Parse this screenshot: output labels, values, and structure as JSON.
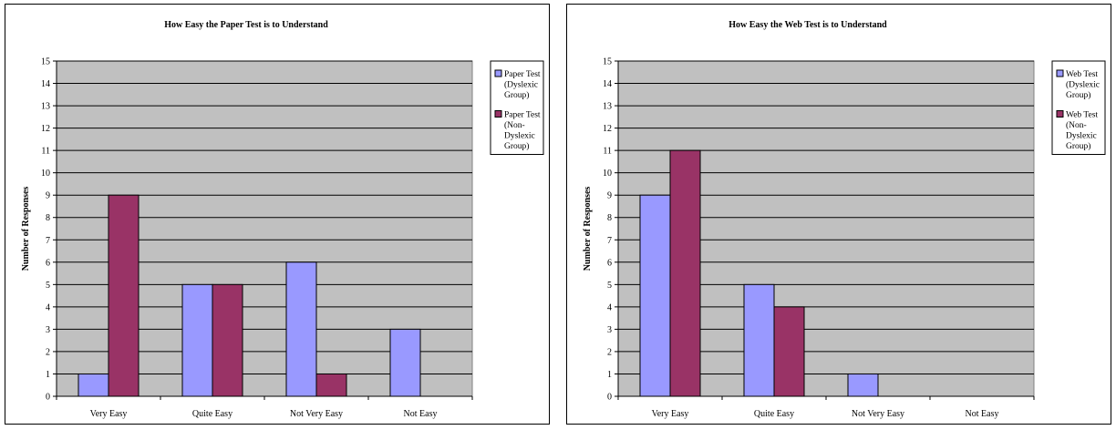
{
  "chart_data": [
    {
      "type": "bar",
      "title": "How Easy the Paper Test is to Understand",
      "xlabel": "",
      "ylabel": "Number of Responses",
      "categories": [
        "Very Easy",
        "Quite Easy",
        "Not Very Easy",
        "Not Easy"
      ],
      "series": [
        {
          "name": "Paper Test (Dyslexic Group)",
          "values": [
            1,
            5,
            6,
            3
          ],
          "color": "#9999ff"
        },
        {
          "name": "Paper Test (Non-Dyslexic Group)",
          "values": [
            9,
            5,
            1,
            0
          ],
          "color": "#993366"
        }
      ],
      "yticks": [
        "0",
        "1",
        "2",
        "3",
        "4",
        "5",
        "6",
        "7",
        "8",
        "9",
        "10",
        "11",
        "12",
        "13",
        "14",
        "15"
      ],
      "ylim": [
        0,
        15
      ],
      "grid": true,
      "plot_background": "#c0c0c0",
      "legend_position": "right",
      "legend": [
        {
          "lines": [
            "Paper Test",
            "(Dyslexic",
            "Group)"
          ]
        },
        {
          "lines": [
            "Paper Test",
            "(Non-",
            "Dyslexic",
            "Group)"
          ]
        }
      ]
    },
    {
      "type": "bar",
      "title": "How Easy the Web Test is to Understand",
      "xlabel": "",
      "ylabel": "Number of Responses",
      "categories": [
        "Very Easy",
        "Quite Easy",
        "Not Very Easy",
        "Not Easy"
      ],
      "series": [
        {
          "name": "Web Test (Dyslexic Group)",
          "values": [
            9,
            5,
            1,
            0
          ],
          "color": "#9999ff"
        },
        {
          "name": "Web Test (Non-Dyslexic Group)",
          "values": [
            11,
            4,
            0,
            0
          ],
          "color": "#993366"
        }
      ],
      "yticks": [
        "0",
        "1",
        "2",
        "3",
        "4",
        "5",
        "6",
        "7",
        "8",
        "9",
        "10",
        "11",
        "12",
        "13",
        "14",
        "15"
      ],
      "ylim": [
        0,
        15
      ],
      "grid": true,
      "plot_background": "#c0c0c0",
      "legend_position": "right",
      "legend": [
        {
          "lines": [
            "Web Test",
            "(Dyslexic",
            "Group)"
          ]
        },
        {
          "lines": [
            "Web Test",
            "(Non-",
            "Dyslexic",
            "Group)"
          ]
        }
      ]
    }
  ]
}
